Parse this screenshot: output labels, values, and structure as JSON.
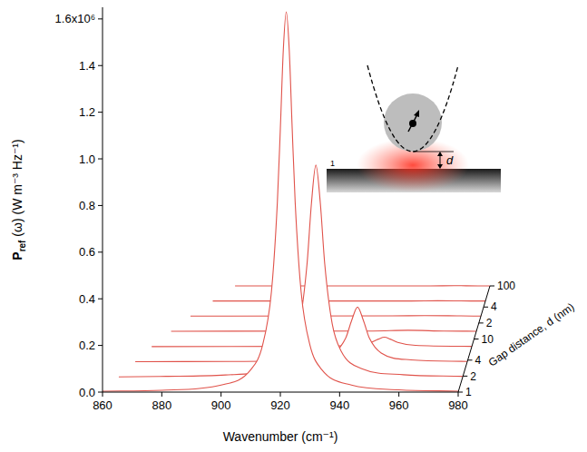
{
  "chart_data": {
    "type": "waterfall",
    "xlabel": "Wavenumber (cm⁻¹)",
    "ylabel": "Pref (ω) (W m⁻³ Hz⁻¹)",
    "zlabel": "Gap distance, d (nm)",
    "xlim": [
      860,
      980
    ],
    "xticks": [
      860,
      880,
      900,
      920,
      940,
      960,
      980
    ],
    "ylim": [
      0,
      1.65
    ],
    "yticks": [
      {
        "value": 0,
        "label": "0.0"
      },
      0.2,
      0.4,
      0.6,
      0.8,
      {
        "value": 1,
        "label": "1.0"
      },
      1.2,
      1.4,
      {
        "value": 1.6,
        "label": "1.6x10⁶"
      }
    ],
    "zlim": [
      1,
      100
    ],
    "zticks": [
      1,
      2,
      4,
      10,
      {
        "value": 20,
        "label": "2"
      },
      {
        "value": 40,
        "label": "4"
      },
      100
    ],
    "log": "z",
    "inset": {
      "gap_label": "d",
      "edge_label": "1"
    },
    "series": [
      {
        "d": 1,
        "color": "#e0524a",
        "x": [
          860,
          880,
          900,
          910,
          914,
          917,
          919,
          920,
          921,
          922,
          923,
          924,
          925,
          927,
          930,
          934,
          944,
          960,
          980
        ],
        "values": [
          0.004,
          0.008,
          0.03,
          0.096,
          0.201,
          0.431,
          0.815,
          1.129,
          1.467,
          1.63,
          1.467,
          1.129,
          0.815,
          0.431,
          0.201,
          0.096,
          0.03,
          0.01,
          0.004
        ]
      },
      {
        "d": 1.9,
        "color": "#e0524a",
        "x": [
          864,
          880,
          900,
          915,
          922,
          925,
          927.5,
          929,
          930.5,
          932,
          933.5,
          936,
          939,
          946,
          960,
          980
        ],
        "values": [
          0.002,
          0.004,
          0.01,
          0.037,
          0.113,
          0.23,
          0.484,
          0.746,
          0.91,
          0.746,
          0.484,
          0.23,
          0.113,
          0.037,
          0.011,
          0.004
        ]
      },
      {
        "d": 3.7,
        "color": "#e0524a",
        "x": [
          868,
          900,
          925,
          935,
          939,
          941,
          943,
          945,
          947,
          951,
          961,
          980
        ],
        "values": [
          0.001,
          0.002,
          0.009,
          0.038,
          0.102,
          0.177,
          0.235,
          0.177,
          0.102,
          0.038,
          0.009,
          0.002
        ]
      },
      {
        "d": 7.2,
        "color": "#e0524a",
        "x": [
          872,
          920,
          940,
          946,
          948.5,
          950.5,
          952.5,
          955,
          961,
          980
        ],
        "values": [
          0,
          0.001,
          0.005,
          0.018,
          0.032,
          0.04,
          0.032,
          0.018,
          0.005,
          0.001
        ]
      },
      {
        "d": 14,
        "color": "#e0524a",
        "x": [
          877,
          945,
          957,
          969,
          980
        ],
        "values": [
          0,
          0.001,
          0.004,
          0.001,
          0
        ]
      },
      {
        "d": 27,
        "color": "#e0524a",
        "x": [
          882,
          950,
          961,
          972,
          980
        ],
        "values": [
          0,
          0.001,
          0.002,
          0.001,
          0
        ]
      },
      {
        "d": 52,
        "color": "#e0524a",
        "x": [
          888,
          955,
          964,
          975,
          980
        ],
        "values": [
          0,
          0,
          0.001,
          0,
          0
        ]
      },
      {
        "d": 100,
        "color": "#e0524a",
        "x": [
          894,
          960,
          968,
          976,
          980
        ],
        "values": [
          0,
          0,
          0.001,
          0,
          0
        ]
      }
    ]
  }
}
